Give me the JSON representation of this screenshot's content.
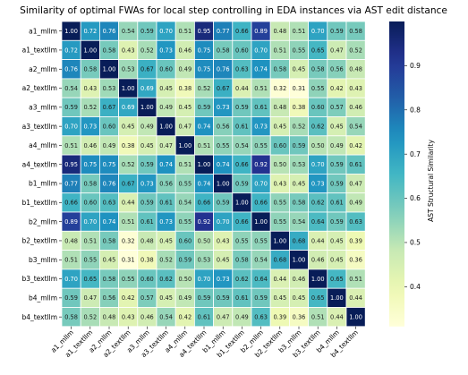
{
  "chart_data": {
    "type": "heatmap",
    "title": "Similarity of optimal FWAs for local step controlling in EDA instances via AST edit distance",
    "xlabel": "",
    "ylabel": "",
    "labels": [
      "a1_mllm",
      "a1_textllm",
      "a2_mllm",
      "a2_textllm",
      "a3_mllm",
      "a3_textllm",
      "a4_mllm",
      "a4_textllm",
      "b1_mllm",
      "b1_textllm",
      "b2_mllm",
      "b2_textllm",
      "b3_mllm",
      "b3_textllm",
      "b4_mllm",
      "b4_textllm"
    ],
    "values": [
      [
        1.0,
        0.72,
        0.76,
        0.54,
        0.59,
        0.7,
        0.51,
        0.95,
        0.77,
        0.66,
        0.89,
        0.48,
        0.51,
        0.7,
        0.59,
        0.58
      ],
      [
        0.72,
        1.0,
        0.58,
        0.43,
        0.52,
        0.73,
        0.46,
        0.75,
        0.58,
        0.6,
        0.7,
        0.51,
        0.55,
        0.65,
        0.47,
        0.52
      ],
      [
        0.76,
        0.58,
        1.0,
        0.53,
        0.67,
        0.6,
        0.49,
        0.75,
        0.76,
        0.63,
        0.74,
        0.58,
        0.45,
        0.58,
        0.56,
        0.48
      ],
      [
        0.54,
        0.43,
        0.53,
        1.0,
        0.69,
        0.45,
        0.38,
        0.52,
        0.67,
        0.44,
        0.51,
        0.32,
        0.31,
        0.55,
        0.42,
        0.43
      ],
      [
        0.59,
        0.52,
        0.67,
        0.69,
        1.0,
        0.49,
        0.45,
        0.59,
        0.73,
        0.59,
        0.61,
        0.48,
        0.38,
        0.6,
        0.57,
        0.46
      ],
      [
        0.7,
        0.73,
        0.6,
        0.45,
        0.49,
        1.0,
        0.47,
        0.74,
        0.56,
        0.61,
        0.73,
        0.45,
        0.52,
        0.62,
        0.45,
        0.54
      ],
      [
        0.51,
        0.46,
        0.49,
        0.38,
        0.45,
        0.47,
        1.0,
        0.51,
        0.55,
        0.54,
        0.55,
        0.6,
        0.59,
        0.5,
        0.49,
        0.42
      ],
      [
        0.95,
        0.75,
        0.75,
        0.52,
        0.59,
        0.74,
        0.51,
        1.0,
        0.74,
        0.66,
        0.92,
        0.5,
        0.53,
        0.7,
        0.59,
        0.61
      ],
      [
        0.77,
        0.58,
        0.76,
        0.67,
        0.73,
        0.56,
        0.55,
        0.74,
        1.0,
        0.59,
        0.7,
        0.43,
        0.45,
        0.73,
        0.59,
        0.47
      ],
      [
        0.66,
        0.6,
        0.63,
        0.44,
        0.59,
        0.61,
        0.54,
        0.66,
        0.59,
        1.0,
        0.66,
        0.55,
        0.58,
        0.62,
        0.61,
        0.49
      ],
      [
        0.89,
        0.7,
        0.74,
        0.51,
        0.61,
        0.73,
        0.55,
        0.92,
        0.7,
        0.66,
        1.0,
        0.55,
        0.54,
        0.64,
        0.59,
        0.63
      ],
      [
        0.48,
        0.51,
        0.58,
        0.32,
        0.48,
        0.45,
        0.6,
        0.5,
        0.43,
        0.55,
        0.55,
        1.0,
        0.68,
        0.44,
        0.45,
        0.39
      ],
      [
        0.51,
        0.55,
        0.45,
        0.31,
        0.38,
        0.52,
        0.59,
        0.53,
        0.45,
        0.58,
        0.54,
        0.68,
        1.0,
        0.46,
        0.45,
        0.36
      ],
      [
        0.7,
        0.65,
        0.58,
        0.55,
        0.6,
        0.62,
        0.5,
        0.7,
        0.73,
        0.62,
        0.64,
        0.44,
        0.46,
        1.0,
        0.65,
        0.51
      ],
      [
        0.59,
        0.47,
        0.56,
        0.42,
        0.57,
        0.45,
        0.49,
        0.59,
        0.59,
        0.61,
        0.59,
        0.45,
        0.45,
        0.65,
        1.0,
        0.44
      ],
      [
        0.58,
        0.52,
        0.48,
        0.43,
        0.46,
        0.54,
        0.42,
        0.61,
        0.47,
        0.49,
        0.63,
        0.39,
        0.36,
        0.51,
        0.44,
        1.0
      ]
    ],
    "colorbar": {
      "label": "AST Structural Similarity",
      "ticks": [
        0.4,
        0.5,
        0.6,
        0.7,
        0.8,
        0.9
      ],
      "range": [
        0.31,
        1.0
      ],
      "colormap": "YlGnBu"
    },
    "grid": true,
    "grid_color": "#ffffff"
  }
}
